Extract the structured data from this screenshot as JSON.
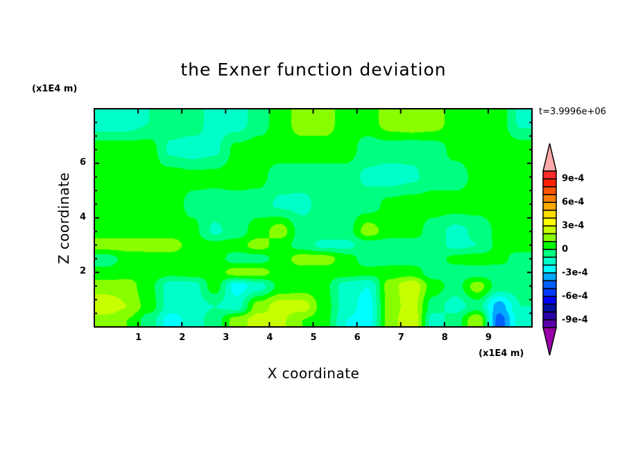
{
  "chart_data": {
    "type": "heatmap",
    "subtype": "filled-contour",
    "title": "the Exner function deviation",
    "xlabel": "X coordinate",
    "ylabel": "Z coordinate",
    "x_unit_label": "(x1E4 m)",
    "y_unit_label": "(x1E4 m)",
    "time_label": "t=3.9996e+06",
    "xlim": [
      0,
      10
    ],
    "ylim": [
      0,
      8
    ],
    "x_ticks": [
      "1",
      "2",
      "3",
      "4",
      "5",
      "6",
      "7",
      "8",
      "9"
    ],
    "y_ticks": [
      "2",
      "4",
      "6"
    ],
    "grid": false,
    "colorbar": {
      "position": "right",
      "levels": [
        -0.001,
        -0.0009,
        -0.0008,
        -0.0007,
        -0.0006,
        -0.0005,
        -0.0004,
        -0.0003,
        -0.0002,
        -0.0001,
        0,
        0.0001,
        0.0002,
        0.0003,
        0.0004,
        0.0005,
        0.0006,
        0.0007,
        0.0008,
        0.0009,
        0.001
      ],
      "colors": [
        "#5a00aa",
        "#2a00a8",
        "#0010a0",
        "#0000ff",
        "#0038ff",
        "#0060ff",
        "#00a8ff",
        "#00ffff",
        "#00ffc8",
        "#00ff80",
        "#00ff00",
        "#88ff00",
        "#c8ff00",
        "#ffff00",
        "#ffdd00",
        "#ffaa00",
        "#ff8000",
        "#ff5500",
        "#ff2200",
        "#ff2a2a"
      ],
      "under_color": "#9900aa",
      "over_color": "#ffaaaa",
      "tick_labels": [
        {
          "value": 0.0009,
          "label": "9e-4"
        },
        {
          "value": 0.0006,
          "label": "6e-4"
        },
        {
          "value": 0.0003,
          "label": "3e-4"
        },
        {
          "value": 0,
          "label": "0"
        },
        {
          "value": -0.0003,
          "label": "-3e-4"
        },
        {
          "value": -0.0006,
          "label": "-6e-4"
        },
        {
          "value": -0.0009,
          "label": "-9e-4"
        }
      ]
    },
    "grid_x": [
      0.25,
      0.75,
      1.25,
      1.75,
      2.25,
      2.75,
      3.25,
      3.75,
      4.25,
      4.75,
      5.25,
      5.75,
      6.25,
      6.75,
      7.25,
      7.75,
      8.25,
      8.75,
      9.25,
      9.75
    ],
    "grid_z": [
      0.25,
      0.75,
      1.5,
      2.0,
      2.5,
      3.0,
      3.5,
      4.5,
      5.5,
      6.5,
      7.5
    ],
    "values_approx": [
      [
        0.00015,
        0.0001,
        -5e-05,
        -0.00025,
        -0.00015,
        -5e-05,
        0.00015,
        0.00025,
        0.00022,
        0.0001,
        5e-05,
        -0.0002,
        -0.00025,
        0.00015,
        0.0003,
        -0.00015,
        -5e-05,
        0.0002,
        -0.00045,
        -0.00015
      ],
      [
        0.00028,
        0.0002,
        5e-05,
        -0.00015,
        -0.00015,
        -0.0001,
        -0.00015,
        0.00015,
        0.00025,
        0.00025,
        5e-05,
        -0.00015,
        -0.00025,
        0.00015,
        0.00025,
        -5e-05,
        -0.00015,
        -5e-05,
        -0.00035,
        -0.0001
      ],
      [
        0.00015,
        0.00015,
        3e-05,
        -0.00015,
        -0.00015,
        5e-05,
        -0.00025,
        -0.00015,
        3e-05,
        5e-05,
        3e-05,
        -0.00015,
        -0.0002,
        0.00015,
        0.00028,
        5e-05,
        -5e-05,
        0.00015,
        -5e-05,
        -5e-05
      ],
      [
        3e-05,
        5e-05,
        5e-05,
        3e-05,
        5e-05,
        5e-05,
        0.00015,
        0.00015,
        5e-05,
        5e-05,
        5e-05,
        5e-05,
        3e-05,
        5e-05,
        5e-05,
        -5e-05,
        -5e-05,
        -5e-05,
        -5e-05,
        -5e-05
      ],
      [
        -5e-05,
        3e-05,
        5e-05,
        5e-05,
        5e-05,
        5e-05,
        -5e-05,
        -5e-05,
        5e-05,
        0.00015,
        0.00015,
        5e-05,
        -5e-05,
        -5e-05,
        -5e-05,
        -5e-05,
        3e-05,
        5e-05,
        3e-05,
        -5e-05
      ],
      [
        0.00015,
        0.00015,
        0.00015,
        0.00015,
        5e-05,
        3e-05,
        5e-05,
        0.00015,
        5e-05,
        -5e-05,
        -0.00013,
        -0.00013,
        -5e-05,
        -5e-05,
        -5e-05,
        -5e-05,
        -0.00013,
        -0.0001,
        3e-05,
        5e-05
      ],
      [
        5e-05,
        5e-05,
        5e-05,
        5e-05,
        3e-05,
        -0.00012,
        -5e-05,
        5e-05,
        0.00015,
        -5e-05,
        -5e-05,
        -5e-05,
        0.00015,
        5e-05,
        5e-05,
        -5e-05,
        -0.00013,
        -8e-05,
        3e-05,
        5e-05
      ],
      [
        5e-05,
        5e-05,
        5e-05,
        5e-05,
        -3e-05,
        -5e-05,
        -5e-05,
        -5e-05,
        -0.00012,
        -0.00013,
        -5e-05,
        -5e-05,
        -5e-05,
        3e-05,
        5e-05,
        5e-05,
        5e-05,
        5e-05,
        5e-05,
        5e-05
      ],
      [
        5e-05,
        5e-05,
        5e-05,
        5e-05,
        3e-05,
        3e-05,
        5e-05,
        3e-05,
        -5e-05,
        -5e-05,
        -5e-05,
        -5e-05,
        -0.00012,
        -0.00015,
        -0.00012,
        -5e-05,
        -5e-05,
        3e-05,
        5e-05,
        5e-05
      ],
      [
        5e-05,
        5e-05,
        5e-05,
        -0.00012,
        -0.00015,
        -0.00012,
        3e-05,
        5e-05,
        5e-05,
        5e-05,
        5e-05,
        5e-05,
        -5e-05,
        -5e-05,
        -7e-05,
        -5e-05,
        3e-05,
        5e-05,
        5e-05,
        5e-05
      ],
      [
        -0.00015,
        -0.00015,
        -0.0001,
        -5e-05,
        -5e-05,
        -0.00015,
        -0.00015,
        -5e-05,
        5e-05,
        0.00015,
        0.00015,
        5e-05,
        5e-05,
        0.00015,
        0.00018,
        0.00015,
        5e-05,
        5e-05,
        5e-05,
        -0.00012
      ]
    ]
  }
}
